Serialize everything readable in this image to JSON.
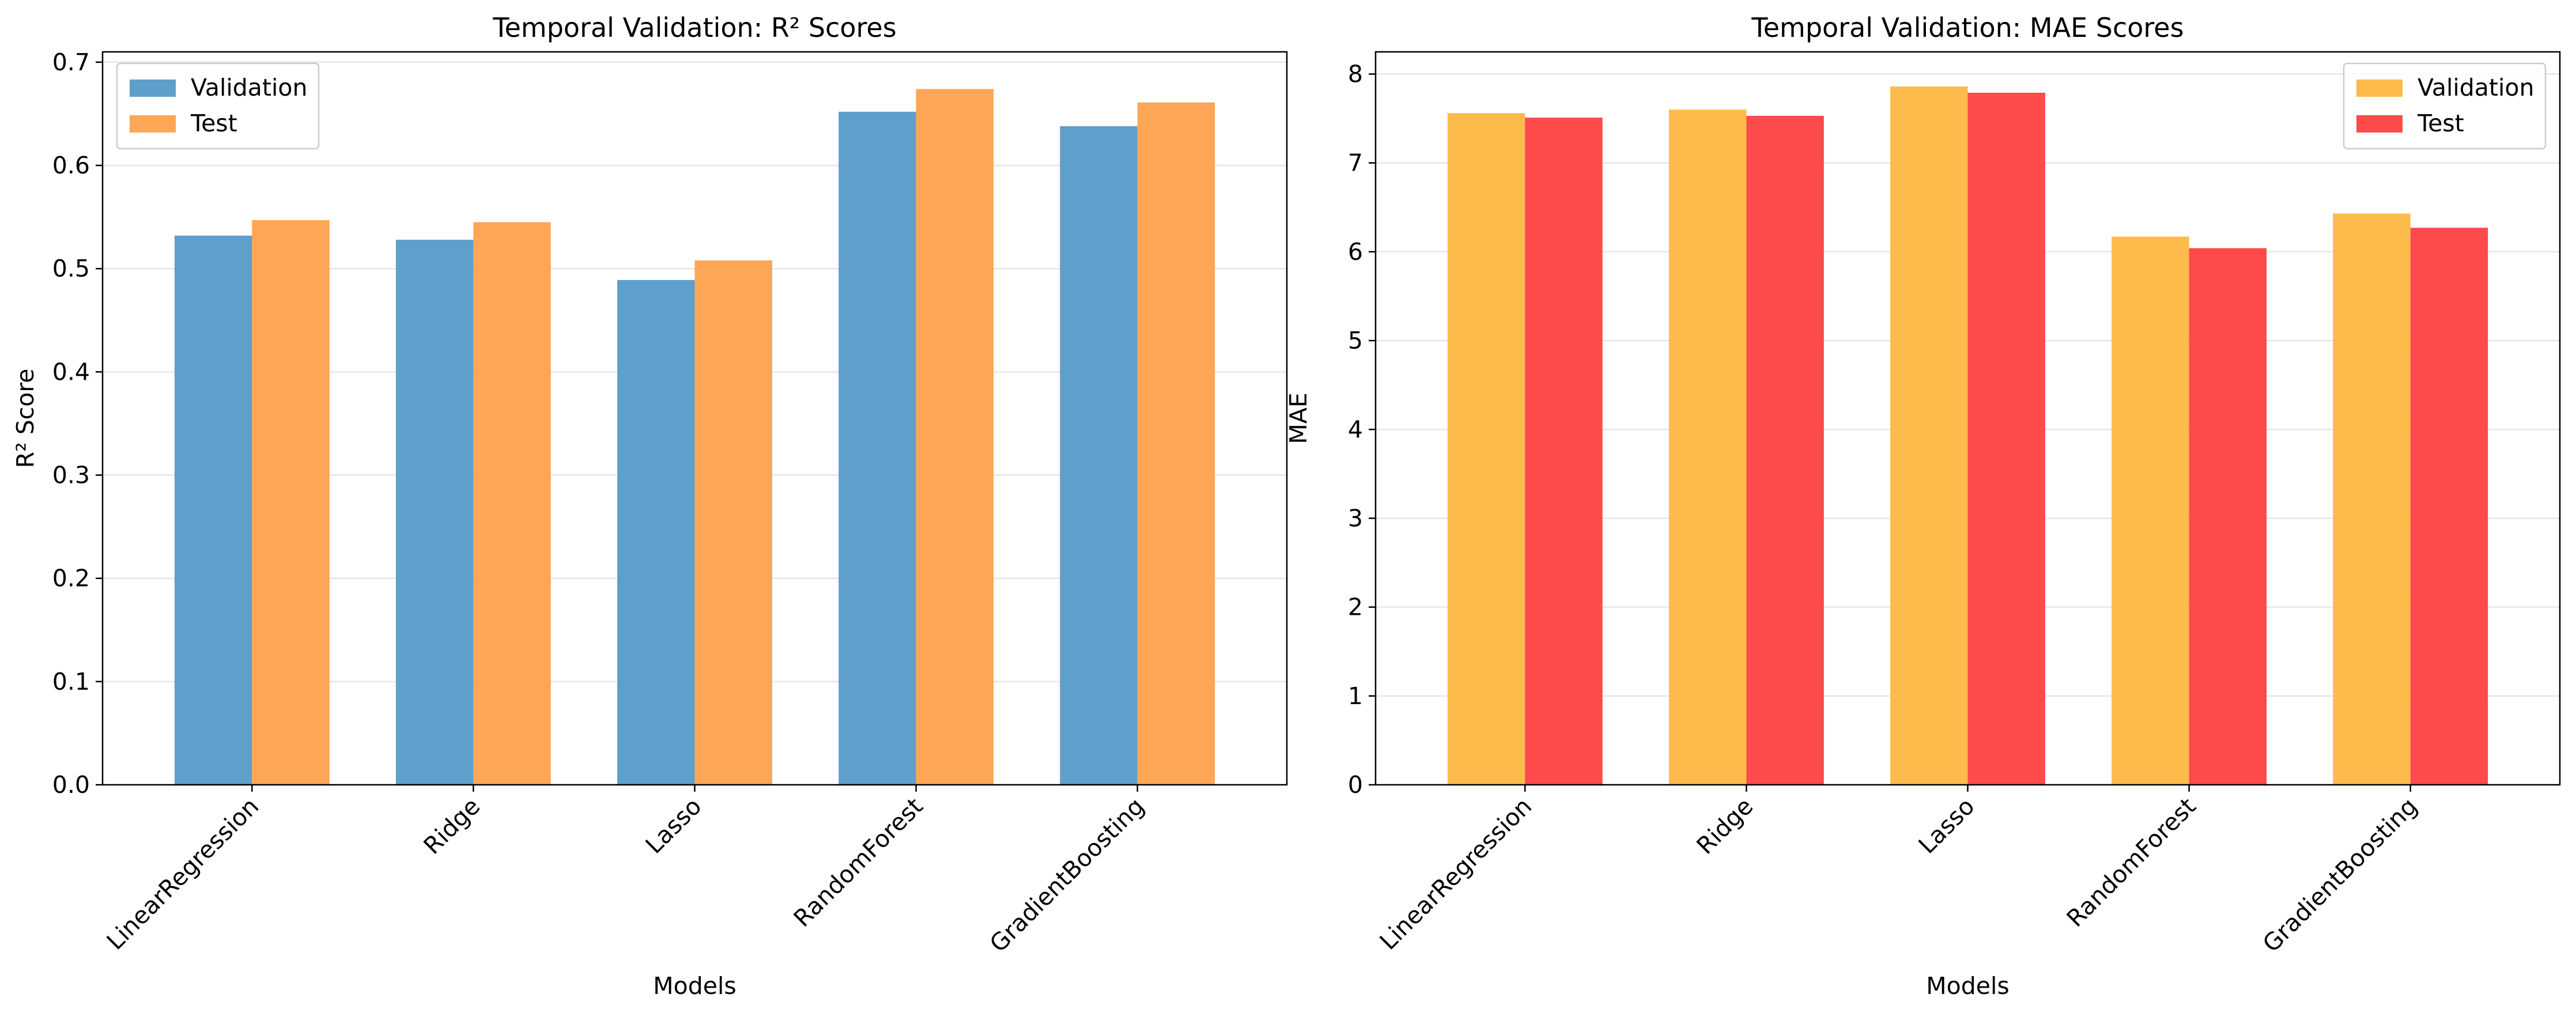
{
  "chart_data": [
    {
      "type": "bar",
      "title": "Temporal Validation: R² Scores",
      "xlabel": "Models",
      "ylabel": "R² Score",
      "categories": [
        "LinearRegression",
        "Ridge",
        "Lasso",
        "RandomForest",
        "GradientBoosting"
      ],
      "series": [
        {
          "name": "Validation",
          "color": "#5f9fcb",
          "values": [
            0.532,
            0.528,
            0.489,
            0.652,
            0.638
          ]
        },
        {
          "name": "Test",
          "color": "#fda655",
          "values": [
            0.547,
            0.545,
            0.508,
            0.674,
            0.661
          ]
        }
      ],
      "ylim": [
        0,
        0.71
      ],
      "yticks": [
        0.0,
        0.1,
        0.2,
        0.3,
        0.4,
        0.5,
        0.6,
        0.7
      ],
      "ytick_labels": [
        "0.0",
        "0.1",
        "0.2",
        "0.3",
        "0.4",
        "0.5",
        "0.6",
        "0.7"
      ],
      "grid": "y",
      "legend_position": "top-left"
    },
    {
      "type": "bar",
      "title": "Temporal Validation: MAE Scores",
      "xlabel": "Models",
      "ylabel": "MAE",
      "categories": [
        "LinearRegression",
        "Ridge",
        "Lasso",
        "RandomForest",
        "GradientBoosting"
      ],
      "series": [
        {
          "name": "Validation",
          "color": "#fdbb4b",
          "values": [
            7.56,
            7.6,
            7.86,
            6.17,
            6.43
          ]
        },
        {
          "name": "Test",
          "color": "#fd4a4a",
          "values": [
            7.51,
            7.53,
            7.79,
            6.04,
            6.27
          ]
        }
      ],
      "ylim": [
        0,
        8.25
      ],
      "yticks": [
        0,
        1,
        2,
        3,
        4,
        5,
        6,
        7,
        8
      ],
      "ytick_labels": [
        "0",
        "1",
        "2",
        "3",
        "4",
        "5",
        "6",
        "7",
        "8"
      ],
      "grid": "y",
      "legend_position": "top-right"
    }
  ]
}
